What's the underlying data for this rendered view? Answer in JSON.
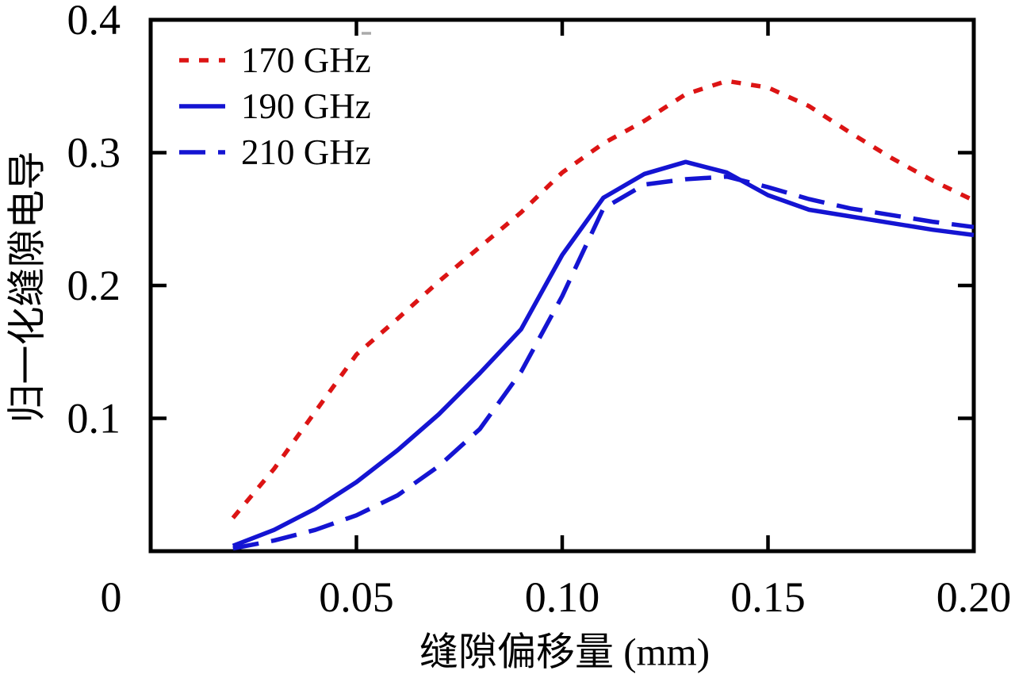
{
  "chart_data": {
    "type": "line",
    "title": "",
    "xlabel": "缝隙偏移量 (mm)",
    "ylabel": "归一化缝隙电导",
    "xlim": [
      0,
      0.2
    ],
    "ylim": [
      0,
      0.4
    ],
    "grid": false,
    "legend_position": "top-left-inside",
    "x_ticks": [
      0,
      0.05,
      0.1,
      0.15,
      0.2
    ],
    "x_tick_labels": [
      "0",
      "0.05",
      "0.10",
      "0.15",
      "0.20"
    ],
    "y_ticks": [
      0.1,
      0.2,
      0.3,
      0.4
    ],
    "y_tick_labels": [
      "0.1",
      "0.2",
      "0.3",
      "0.4"
    ],
    "x": [
      0.02,
      0.03,
      0.04,
      0.05,
      0.06,
      0.07,
      0.08,
      0.09,
      0.1,
      0.11,
      0.12,
      0.13,
      0.14,
      0.15,
      0.16,
      0.17,
      0.18,
      0.19,
      0.2
    ],
    "series": [
      {
        "name": "170 GHz",
        "color": "#dc1414",
        "style": "dotted",
        "dash": "12 13",
        "values": [
          0.025,
          0.062,
          0.105,
          0.148,
          0.175,
          0.203,
          0.229,
          0.255,
          0.285,
          0.307,
          0.324,
          0.344,
          0.354,
          0.349,
          0.335,
          0.315,
          0.296,
          0.279,
          0.264
        ]
      },
      {
        "name": "190 GHz",
        "color": "#1414d2",
        "style": "solid",
        "dash": "",
        "values": [
          0.004,
          0.016,
          0.032,
          0.052,
          0.076,
          0.103,
          0.134,
          0.167,
          0.223,
          0.266,
          0.284,
          0.293,
          0.285,
          0.268,
          0.257,
          0.252,
          0.247,
          0.242,
          0.238
        ]
      },
      {
        "name": "210 GHz",
        "color": "#1414d2",
        "style": "dashed",
        "dash": "33 16",
        "values": [
          0.002,
          0.008,
          0.016,
          0.027,
          0.042,
          0.064,
          0.092,
          0.135,
          0.192,
          0.258,
          0.276,
          0.28,
          0.282,
          0.274,
          0.265,
          0.258,
          0.253,
          0.248,
          0.244
        ]
      }
    ]
  }
}
